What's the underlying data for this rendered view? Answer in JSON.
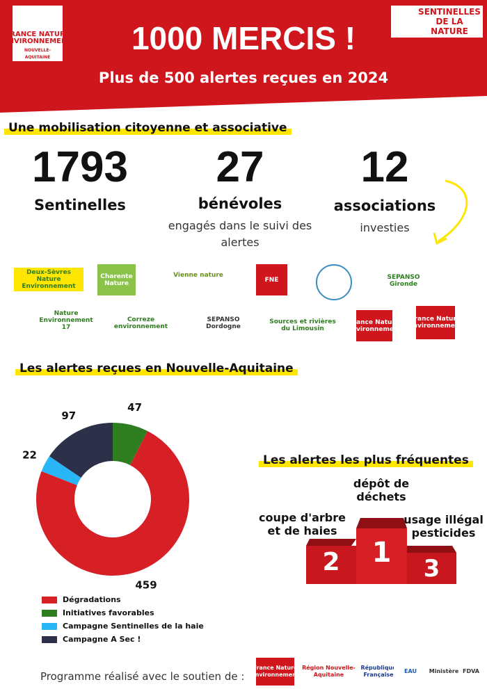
{
  "header": {
    "logo_left": "FRANCE NATURE ENVIRONNEMENT",
    "logo_left_sub": "NOUVELLE-AQUITAINE",
    "logo_right": "SENTINELLES DE LA NATURE",
    "title": "1000 MERCIS !",
    "subtitle": "Plus de 500 alertes reçues en 2024"
  },
  "mobilisation": {
    "heading": "Une mobilisation citoyenne et associative",
    "stats": [
      {
        "number": "1793",
        "label": "Sentinelles"
      },
      {
        "number": "27",
        "label": "bénévoles",
        "detail": "engagés dans le suivi des alertes"
      },
      {
        "number": "12",
        "label": "associations",
        "detail": "investies"
      }
    ]
  },
  "partners": [
    "Deux-Sèvres Nature Environnement",
    "Charente Nature",
    "Vienne nature",
    "FNE",
    "SEPANSO Gironde",
    "Nature Environnement 17",
    "Correze environnement",
    "SEPANSO Dordogne",
    "Sources et rivières du Limousin",
    "France Nature Environnement",
    "France Nature Environnement"
  ],
  "chart_data": {
    "type": "donut",
    "title": "Les alertes reçues en Nouvelle-Aquitaine",
    "categories": [
      "Dégradations",
      "Initiatives favorables",
      "Campagne Sentinelles de la haie",
      "Campagne A Sec !"
    ],
    "values": [
      459,
      47,
      22,
      97
    ],
    "colors": [
      "#d71f26",
      "#2e7d1e",
      "#29b6f6",
      "#2c3049"
    ]
  },
  "top_alerts": {
    "heading": "Les alertes les plus fréquentes",
    "podium": [
      {
        "rank": "1",
        "label": "dépôt de déchets"
      },
      {
        "rank": "2",
        "label": "coupe d'arbre et de haies"
      },
      {
        "rank": "3",
        "label": "usage illégal pesticides"
      }
    ]
  },
  "footer": {
    "text": "Programme réalisé avec le soutien de :",
    "sponsors": [
      "France Nature Environnement",
      "Région Nouvelle-Aquitaine",
      "République Française",
      "EAU",
      "Ministère",
      "FDVA"
    ]
  }
}
